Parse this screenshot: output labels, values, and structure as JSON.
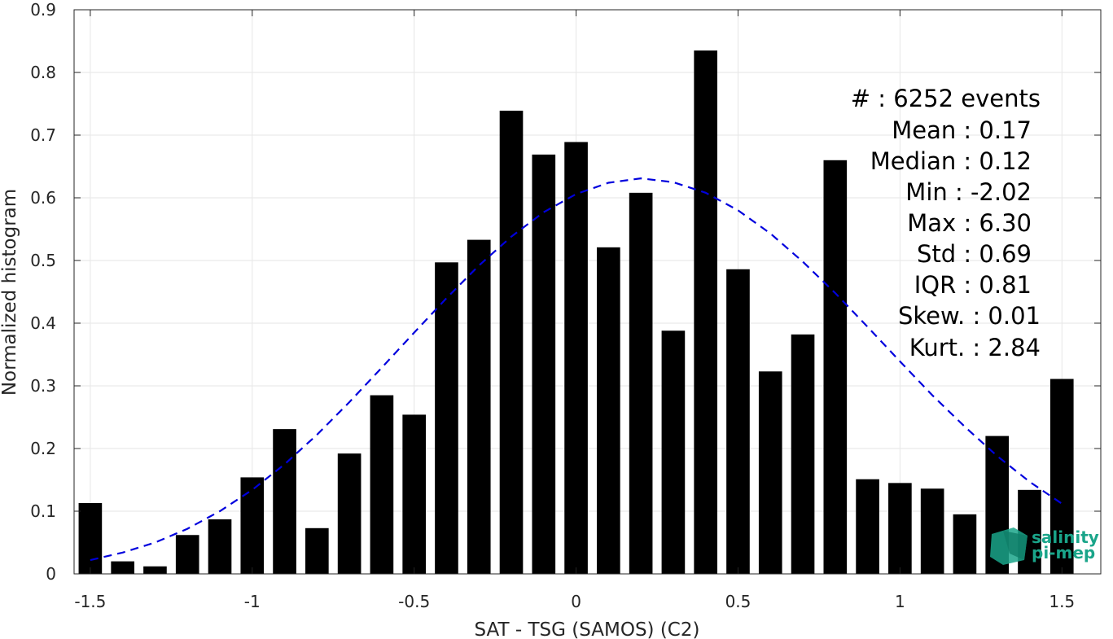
{
  "chart_data": {
    "type": "bar",
    "xlabel": "SAT - TSG (SAMOS) (C2)",
    "ylabel": "Normalized histogram",
    "xlim": [
      -1.55,
      1.62
    ],
    "ylim": [
      0,
      0.9
    ],
    "xticks": [
      -1.5,
      -1,
      -0.5,
      0,
      0.5,
      1,
      1.5
    ],
    "xtick_labels": [
      "-1.5",
      "-1",
      "-0.5",
      "0",
      "0.5",
      "1",
      "1.5"
    ],
    "yticks": [
      0,
      0.1,
      0.2,
      0.3,
      0.4,
      0.5,
      0.6,
      0.7,
      0.8,
      0.9
    ],
    "ytick_labels": [
      "0",
      "0.1",
      "0.2",
      "0.3",
      "0.4",
      "0.5",
      "0.6",
      "0.7",
      "0.8",
      "0.9"
    ],
    "grid": true,
    "bar_color": "#000000",
    "x": [
      -1.5,
      -1.4,
      -1.3,
      -1.2,
      -1.1,
      -1.0,
      -0.9,
      -0.8,
      -0.7,
      -0.6,
      -0.5,
      -0.4,
      -0.3,
      -0.2,
      -0.1,
      0.0,
      0.1,
      0.2,
      0.3,
      0.4,
      0.5,
      0.6,
      0.7,
      0.8,
      0.9,
      1.0,
      1.1,
      1.2,
      1.3,
      1.4,
      1.5
    ],
    "values": [
      0.113,
      0.02,
      0.012,
      0.062,
      0.087,
      0.154,
      0.231,
      0.073,
      0.192,
      0.285,
      0.254,
      0.497,
      0.533,
      0.739,
      0.669,
      0.689,
      0.521,
      0.608,
      0.388,
      0.835,
      0.486,
      0.323,
      0.382,
      0.66,
      0.151,
      0.145,
      0.136,
      0.095,
      0.22,
      0.134,
      0.311
    ],
    "fit": {
      "type": "gaussian",
      "color": "#0000dd",
      "x": [
        -1.5,
        -1.4,
        -1.3,
        -1.2,
        -1.1,
        -1.0,
        -0.9,
        -0.8,
        -0.7,
        -0.6,
        -0.5,
        -0.4,
        -0.3,
        -0.2,
        -0.1,
        0.0,
        0.1,
        0.2,
        0.3,
        0.4,
        0.5,
        0.6,
        0.7,
        0.8,
        0.9,
        1.0,
        1.1,
        1.2,
        1.3,
        1.4,
        1.5
      ],
      "y": [
        0.022,
        0.034,
        0.05,
        0.072,
        0.1,
        0.134,
        0.175,
        0.222,
        0.274,
        0.329,
        0.385,
        0.44,
        0.492,
        0.538,
        0.577,
        0.606,
        0.624,
        0.631,
        0.625,
        0.608,
        0.58,
        0.543,
        0.498,
        0.448,
        0.394,
        0.339,
        0.285,
        0.235,
        0.188,
        0.147,
        0.112
      ]
    },
    "stats": [
      {
        "label": "#  : 6252 events"
      },
      {
        "label": "Mean : 0.17"
      },
      {
        "label": "Median : 0.12"
      },
      {
        "label": "Min : -2.02"
      },
      {
        "label": "Max : 6.30"
      },
      {
        "label": "Std : 0.69"
      },
      {
        "label": "IQR : 0.81"
      },
      {
        "label": "Skew. : 0.01"
      },
      {
        "label": "Kurt. : 2.84"
      }
    ]
  },
  "logo": {
    "line1": "salinity",
    "line2": "pi-mep",
    "color": "#1aa58a"
  }
}
